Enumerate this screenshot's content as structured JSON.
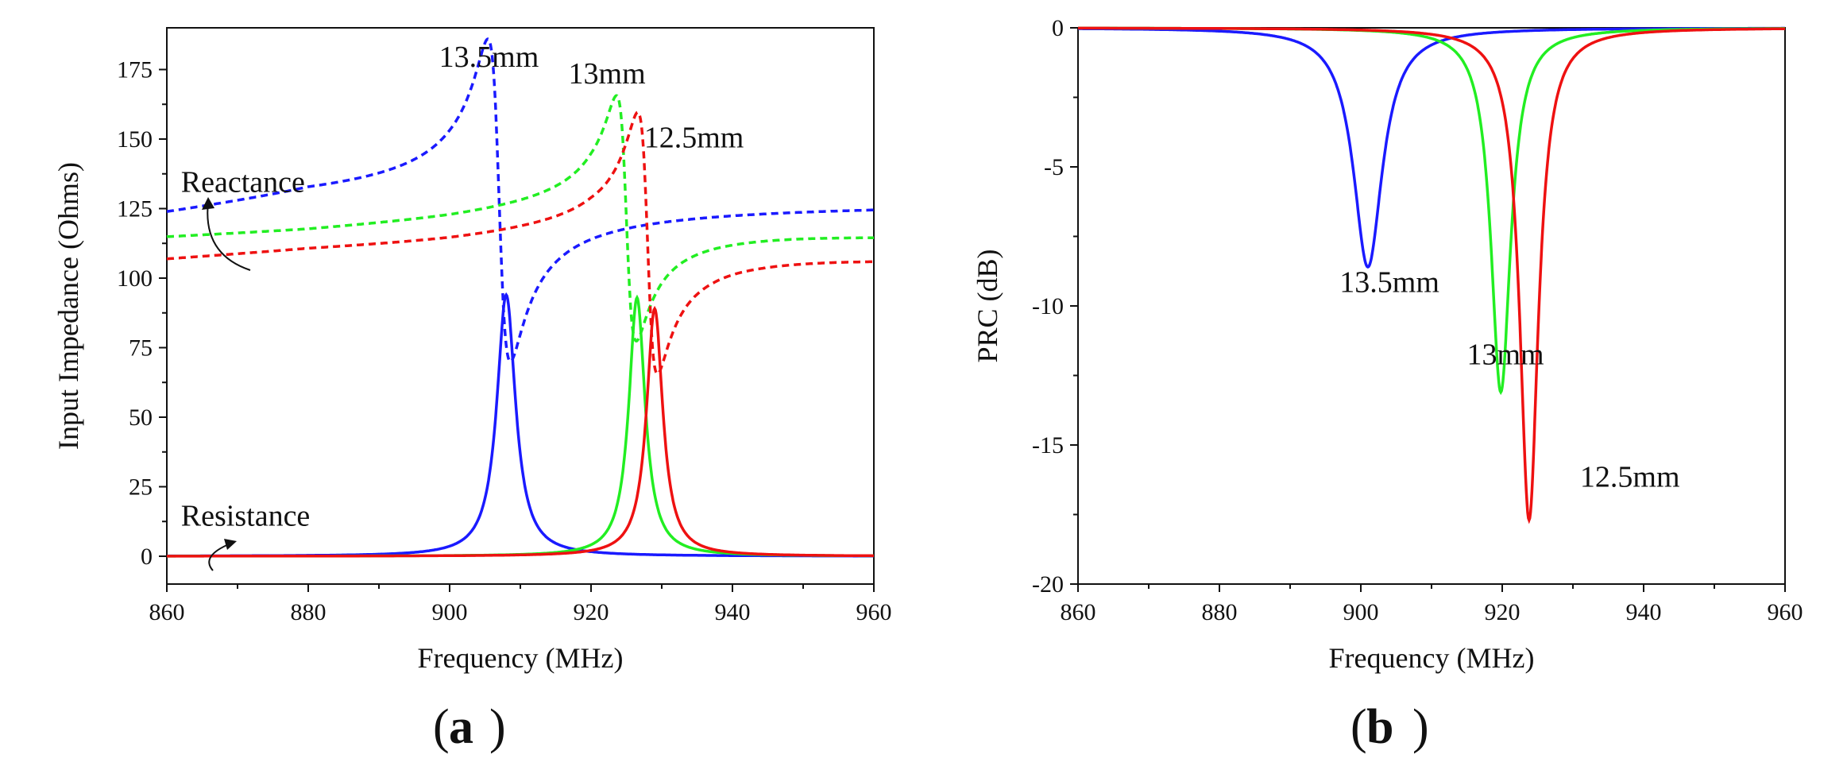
{
  "chart_data": [
    {
      "panel_label": "a",
      "type": "line",
      "xlabel": "Frequency (MHz)",
      "ylabel": "Input Impedance (Ohms)",
      "xlim": [
        860,
        960
      ],
      "ylim": [
        -10,
        190
      ],
      "xticks": [
        860,
        880,
        900,
        920,
        940,
        960
      ],
      "yticks": [
        0,
        25,
        50,
        75,
        100,
        125,
        150,
        175
      ],
      "series": [
        {
          "name": "13.5mm Resistance",
          "color": "#1a1aff",
          "style": "solid",
          "kind": "resistance",
          "f0": 908,
          "peak": 94,
          "halfwidth": 1.6
        },
        {
          "name": "13mm Resistance",
          "color": "#22ee22",
          "style": "solid",
          "kind": "resistance",
          "f0": 926.5,
          "peak": 93,
          "halfwidth": 1.4
        },
        {
          "name": "12.5mm Resistance",
          "color": "#ee1111",
          "style": "solid",
          "kind": "resistance",
          "f0": 929,
          "peak": 89,
          "halfwidth": 1.4
        },
        {
          "name": "13.5mm Reactance",
          "color": "#1a1aff",
          "style": "dashed",
          "kind": "reactance",
          "f0": 907,
          "amp": 58,
          "halfwidth": 1.6,
          "base": [
            [
              860,
              120
            ],
            [
              880,
              126
            ],
            [
              900,
              128
            ],
            [
              920,
              128
            ],
            [
              940,
              128
            ],
            [
              960,
              128
            ]
          ]
        },
        {
          "name": "13mm Reactance",
          "color": "#22ee22",
          "style": "dashed",
          "kind": "reactance",
          "f0": 925,
          "amp": 44,
          "halfwidth": 1.4,
          "base": [
            [
              860,
              113
            ],
            [
              880,
              115
            ],
            [
              900,
              118
            ],
            [
              920,
              122
            ],
            [
              940,
              120
            ],
            [
              960,
              118
            ]
          ]
        },
        {
          "name": "12.5mm Reactance",
          "color": "#ee1111",
          "style": "dashed",
          "kind": "reactance",
          "f0": 928,
          "amp": 47,
          "halfwidth": 1.4,
          "base": [
            [
              860,
              105
            ],
            [
              880,
              108
            ],
            [
              900,
              110
            ],
            [
              920,
              113
            ],
            [
              940,
              112
            ],
            [
              960,
              110
            ]
          ]
        }
      ],
      "annotations": [
        {
          "text": "13.5mm",
          "x": 898.5,
          "y": 176
        },
        {
          "text": "13mm",
          "x": 916.8,
          "y": 170
        },
        {
          "text": "12.5mm",
          "x": 927.5,
          "y": 147
        },
        {
          "text": "Reactance",
          "x": 862,
          "y": 131
        },
        {
          "text": "Resistance",
          "x": 862,
          "y": 11
        }
      ]
    },
    {
      "panel_label": "b",
      "type": "line",
      "xlabel": "Frequency (MHz)",
      "ylabel": "PRC (dB)",
      "xlim": [
        860,
        960
      ],
      "ylim": [
        -20,
        0
      ],
      "xticks": [
        860,
        880,
        900,
        920,
        940,
        960
      ],
      "yticks": [
        0,
        -5,
        -10,
        -15,
        -20
      ],
      "series": [
        {
          "name": "13.5mm",
          "color": "#1a1aff",
          "f0": 901,
          "depth": -8.6,
          "halfwidth": 2.5
        },
        {
          "name": "13mm",
          "color": "#22ee22",
          "f0": 919.8,
          "depth": -13.1,
          "halfwidth": 1.7
        },
        {
          "name": "12.5mm",
          "color": "#ee1111",
          "f0": 923.8,
          "depth": -17.7,
          "halfwidth": 1.6
        }
      ],
      "annotations": [
        {
          "text": "13.5mm",
          "x": 897,
          "y": -9.5
        },
        {
          "text": "13mm",
          "x": 915,
          "y": -12.1
        },
        {
          "text": "12.5mm",
          "x": 931,
          "y": -16.5
        }
      ]
    }
  ]
}
